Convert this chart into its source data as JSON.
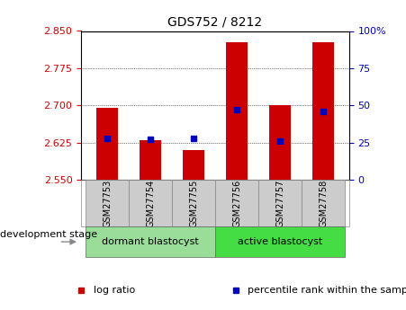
{
  "title": "GDS752 / 8212",
  "categories": [
    "GSM27753",
    "GSM27754",
    "GSM27755",
    "GSM27756",
    "GSM27757",
    "GSM27758"
  ],
  "log_ratio": [
    2.695,
    2.63,
    2.61,
    2.828,
    2.7,
    2.828
  ],
  "percentile_rank": [
    28,
    27,
    28,
    47,
    26,
    46
  ],
  "baseline": 2.55,
  "ylim_left": [
    2.55,
    2.85
  ],
  "ylim_right": [
    0,
    100
  ],
  "yticks_left": [
    2.55,
    2.625,
    2.7,
    2.775,
    2.85
  ],
  "yticks_right": [
    0,
    25,
    50,
    75,
    100
  ],
  "bar_color": "#cc0000",
  "marker_color": "#0000bb",
  "bar_width": 0.5,
  "groups": [
    {
      "label": "dormant blastocyst",
      "indices": [
        0,
        1,
        2
      ],
      "color": "#99dd99"
    },
    {
      "label": "active blastocyst",
      "indices": [
        3,
        4,
        5
      ],
      "color": "#44dd44"
    }
  ],
  "group_label": "development stage",
  "legend_items": [
    {
      "label": "log ratio",
      "color": "#cc0000"
    },
    {
      "label": "percentile rank within the sample",
      "color": "#0000bb"
    }
  ],
  "title_fontsize": 10,
  "tick_fontsize": 8,
  "cat_fontsize": 7,
  "group_fontsize": 8,
  "legend_fontsize": 8
}
